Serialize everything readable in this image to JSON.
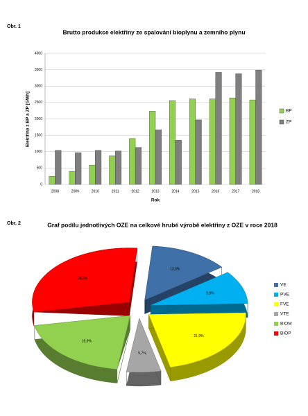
{
  "chart_data": [
    {
      "type": "bar",
      "figure_label": "Obr. 1",
      "title": "Brutto produkce elektřiny ze spalování bioplynu a zemního plynu",
      "x_label": "Rok",
      "y_label": "Elektřina z BP a ZP [GWh]",
      "categories": [
        "2008",
        "2009",
        "2010",
        "2011",
        "2012",
        "2013",
        "2014",
        "2015",
        "2016",
        "2017",
        "2018"
      ],
      "series": [
        {
          "name": "BP",
          "color": "#92d050",
          "values": [
            250,
            400,
            590,
            870,
            1400,
            2240,
            2560,
            2610,
            2610,
            2640,
            2580
          ]
        },
        {
          "name": "ZP",
          "color": "#7f7f7f",
          "values": [
            1040,
            970,
            1040,
            1020,
            1130,
            1670,
            1350,
            1970,
            3420,
            3380,
            3490
          ]
        }
      ],
      "ylim": [
        0,
        4000
      ],
      "yticks": [
        0,
        500,
        1000,
        1500,
        2000,
        2500,
        3000,
        3500,
        4000
      ],
      "grid": true,
      "legend": "right"
    },
    {
      "type": "pie",
      "figure_label": "Obr. 2",
      "title": "Graf podílu jednotlivých OZE na celkové hrubé výrobě elektřiny z OZE v roce 2018",
      "categories": [
        "VE",
        "PVE",
        "FVE",
        "VTE",
        "BIOM",
        "BIOP"
      ],
      "values": [
        13.3,
        9.9,
        21.9,
        5.7,
        19.9,
        29.2
      ],
      "value_labels": [
        "13,3%",
        "9,9%",
        "21,9%",
        "5,7%",
        "19,9%",
        "29,2%"
      ],
      "colors": [
        "#4070a8",
        "#00b0f0",
        "#ffff00",
        "#a6a6a6",
        "#92d050",
        "#ff0000"
      ],
      "legend": "right"
    }
  ]
}
